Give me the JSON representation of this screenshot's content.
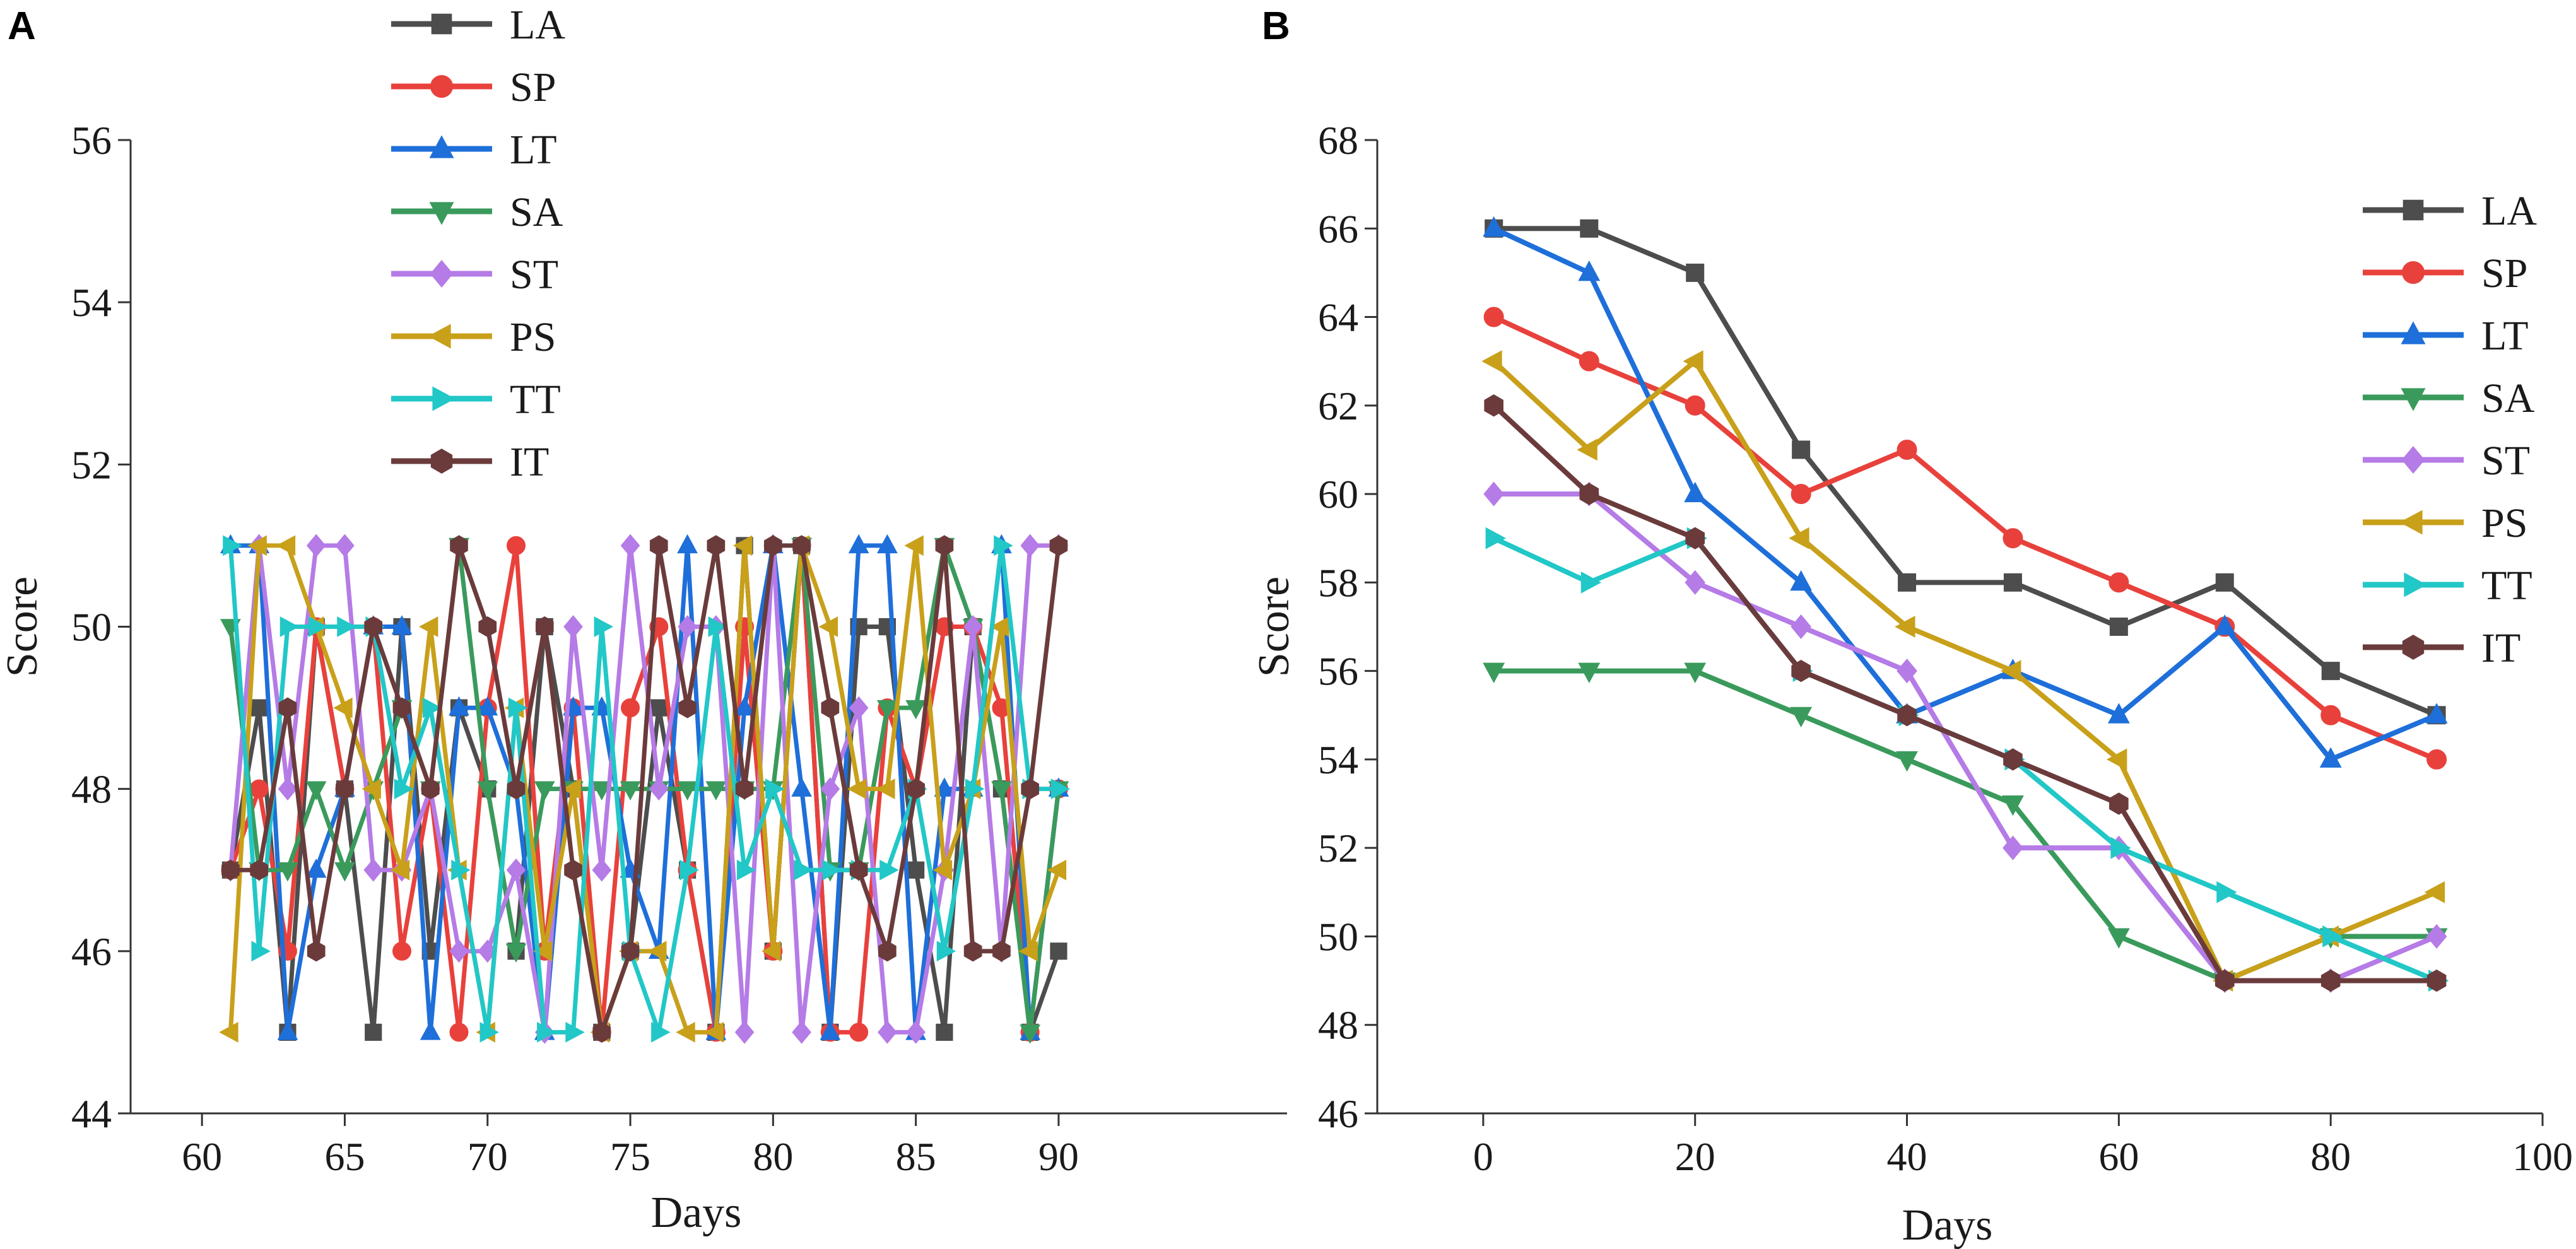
{
  "series_styles": [
    {
      "name": "LA",
      "color": "#4d4d4d",
      "marker": "square"
    },
    {
      "name": "SP",
      "color": "#e8413c",
      "marker": "circle"
    },
    {
      "name": "LT",
      "color": "#1e6fd9",
      "marker": "triangle-up"
    },
    {
      "name": "SA",
      "color": "#3a9a5c",
      "marker": "triangle-down"
    },
    {
      "name": "ST",
      "color": "#b57be6",
      "marker": "diamond"
    },
    {
      "name": "PS",
      "color": "#c8a01a",
      "marker": "triangle-left"
    },
    {
      "name": "TT",
      "color": "#22c7c7",
      "marker": "triangle-right"
    },
    {
      "name": "IT",
      "color": "#6b3b3b",
      "marker": "hexagon"
    }
  ],
  "chart_data": [
    {
      "panel": "A",
      "type": "line",
      "xlabel": "Days",
      "ylabel": "Score",
      "xlim": [
        57.5,
        98
      ],
      "ylim": [
        44,
        56
      ],
      "xticks": [
        60,
        65,
        70,
        75,
        80,
        85,
        90
      ],
      "yticks": [
        44,
        46,
        48,
        50,
        52,
        54,
        56
      ],
      "legend": "top-left",
      "x": [
        61,
        62,
        63,
        64,
        65,
        66,
        67,
        68,
        69,
        70,
        71,
        72,
        73,
        74,
        75,
        76,
        77,
        78,
        79,
        80,
        81,
        82,
        83,
        84,
        85,
        86,
        87,
        88,
        89,
        90
      ],
      "series": [
        {
          "name": "LA",
          "values": [
            47,
            49,
            45,
            50,
            48,
            45,
            50,
            46,
            49,
            48,
            46,
            50,
            48,
            45,
            46,
            49,
            47,
            45,
            51,
            46,
            51,
            45,
            50,
            50,
            47,
            45,
            50,
            48,
            45,
            46
          ]
        },
        {
          "name": "SP",
          "values": [
            47,
            48,
            46,
            50,
            48,
            50,
            46,
            48,
            45,
            49,
            51,
            46,
            49,
            45,
            49,
            50,
            47,
            45,
            50,
            46,
            51,
            45,
            45,
            49,
            48,
            50,
            50,
            49,
            45,
            48
          ]
        },
        {
          "name": "LT",
          "values": [
            51,
            51,
            45,
            47,
            48,
            50,
            50,
            45,
            49,
            49,
            48,
            45,
            49,
            49,
            47,
            46,
            51,
            45,
            49,
            51,
            48,
            45,
            51,
            51,
            45,
            48,
            48,
            51,
            45,
            48
          ]
        },
        {
          "name": "SA",
          "values": [
            50,
            47,
            47,
            48,
            47,
            48,
            49,
            48,
            51,
            48,
            46,
            48,
            48,
            48,
            48,
            48,
            48,
            48,
            48,
            48,
            51,
            47,
            47,
            49,
            49,
            51,
            50,
            48,
            45,
            48
          ]
        },
        {
          "name": "ST",
          "values": [
            47,
            51,
            48,
            51,
            51,
            47,
            47,
            48,
            46,
            46,
            47,
            45,
            50,
            47,
            51,
            48,
            50,
            50,
            45,
            51,
            45,
            48,
            49,
            45,
            45,
            47,
            50,
            46,
            51,
            51
          ]
        },
        {
          "name": "PS",
          "values": [
            45,
            51,
            51,
            50,
            49,
            48,
            47,
            50,
            47,
            45,
            49,
            46,
            48,
            45,
            46,
            46,
            45,
            45,
            51,
            46,
            51,
            50,
            48,
            48,
            51,
            47,
            48,
            50,
            46,
            47
          ]
        },
        {
          "name": "TT",
          "values": [
            51,
            46,
            50,
            50,
            50,
            50,
            48,
            49,
            47,
            45,
            49,
            45,
            45,
            50,
            46,
            45,
            47,
            50,
            47,
            48,
            47,
            47,
            47,
            47,
            48,
            46,
            48,
            51,
            48,
            48
          ]
        },
        {
          "name": "IT",
          "values": [
            47,
            47,
            49,
            46,
            48,
            50,
            49,
            48,
            51,
            50,
            48,
            50,
            47,
            45,
            46,
            51,
            49,
            51,
            48,
            51,
            51,
            49,
            47,
            46,
            48,
            51,
            46,
            46,
            48,
            51
          ]
        }
      ]
    },
    {
      "panel": "B",
      "type": "line",
      "xlabel": "Days",
      "ylabel": "Score",
      "xlim": [
        -10,
        100
      ],
      "ylim": [
        46,
        68
      ],
      "xticks": [
        0,
        20,
        40,
        60,
        80,
        100
      ],
      "yticks": [
        46,
        48,
        50,
        52,
        54,
        56,
        58,
        60,
        62,
        64,
        66,
        68
      ],
      "legend": "top-right",
      "x": [
        1,
        10,
        20,
        30,
        40,
        50,
        60,
        70,
        80,
        90
      ],
      "series": [
        {
          "name": "LA",
          "values": [
            66,
            66,
            65,
            61,
            58,
            58,
            57,
            58,
            56,
            55
          ]
        },
        {
          "name": "SP",
          "values": [
            64,
            63,
            62,
            60,
            61,
            59,
            58,
            57,
            55,
            54
          ]
        },
        {
          "name": "LT",
          "values": [
            66,
            65,
            60,
            58,
            55,
            56,
            55,
            57,
            54,
            55
          ]
        },
        {
          "name": "SA",
          "values": [
            56,
            56,
            56,
            55,
            54,
            53,
            50,
            49,
            50,
            50
          ]
        },
        {
          "name": "ST",
          "values": [
            60,
            60,
            58,
            57,
            56,
            52,
            52,
            49,
            49,
            50
          ]
        },
        {
          "name": "PS",
          "values": [
            63,
            61,
            63,
            59,
            57,
            56,
            54,
            49,
            50,
            51
          ]
        },
        {
          "name": "TT",
          "values": [
            59,
            58,
            59,
            56,
            55,
            54,
            52,
            51,
            50,
            49
          ]
        },
        {
          "name": "IT",
          "values": [
            62,
            60,
            59,
            56,
            55,
            54,
            53,
            49,
            49,
            49
          ]
        }
      ]
    }
  ]
}
